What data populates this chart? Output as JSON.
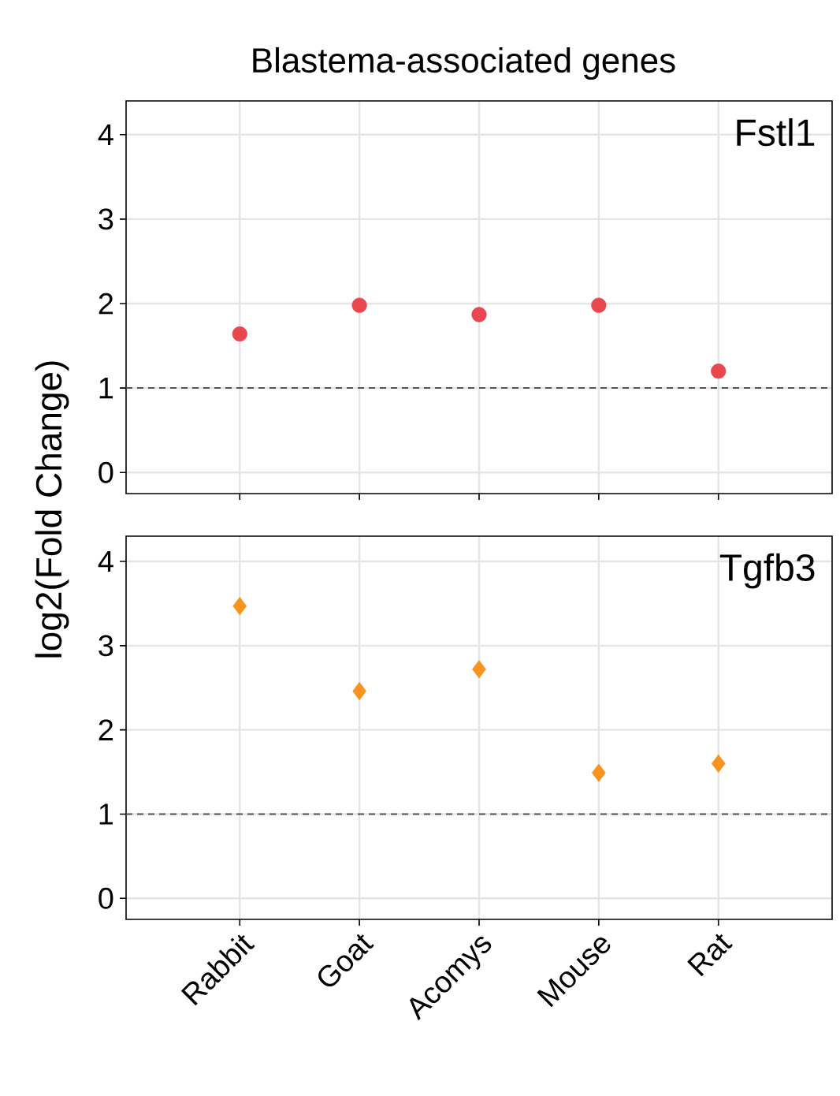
{
  "chart_data": [
    {
      "type": "scatter",
      "title": "Blastema-associated genes",
      "ylabel": "log2(Fold Change)",
      "annotations": [
        "Fstl1"
      ],
      "series": [
        {
          "color": "#e8474f",
          "values": [
            1.64,
            1.98,
            1.87,
            1.98,
            1.2
          ]
        }
      ],
      "marker": "circle",
      "ylim": [
        -0.25,
        4.4
      ],
      "yticks": [
        0,
        1,
        2,
        3,
        4
      ],
      "grid": true,
      "tick_labels": "y",
      "ref_lines": [
        {
          "axis": "y",
          "value": 1,
          "color": "#555555",
          "line_style": "dashed"
        }
      ]
    },
    {
      "type": "scatter",
      "annotations": [
        "Tgfb3"
      ],
      "categories": [
        "Rabbit",
        "Goat",
        "Acomys",
        "Mouse",
        "Rat"
      ],
      "series": [
        {
          "color": "#f7931e",
          "values": [
            3.47,
            2.46,
            2.72,
            1.49,
            1.6
          ]
        }
      ],
      "marker": "diamond",
      "ylim": [
        -0.25,
        4.3
      ],
      "yticks": [
        0,
        1,
        2,
        3,
        4
      ],
      "grid": true,
      "ref_lines": [
        {
          "axis": "y",
          "value": 1,
          "color": "#555555",
          "line_style": "dashed"
        }
      ]
    }
  ]
}
